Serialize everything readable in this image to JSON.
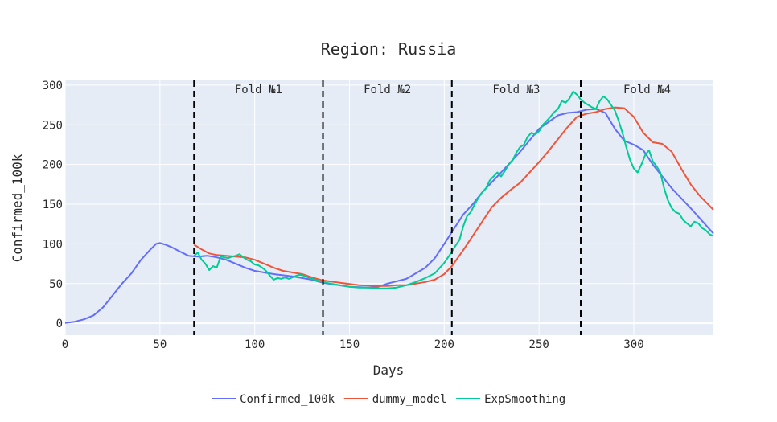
{
  "chart_data": {
    "type": "line",
    "title": "Region: Russia",
    "xlabel": "Days",
    "ylabel": "Confirmed_100k",
    "xlim": [
      0,
      342
    ],
    "ylim": [
      -15,
      306
    ],
    "xticks": [
      0,
      50,
      100,
      150,
      200,
      250,
      300
    ],
    "yticks": [
      0,
      50,
      100,
      150,
      200,
      250,
      300
    ],
    "grid": true,
    "legend_position": "bottom",
    "folds": [
      {
        "label": "Fold №1",
        "start": 68,
        "end": 136
      },
      {
        "label": "Fold №2",
        "start": 136,
        "end": 204
      },
      {
        "label": "Fold №3",
        "start": 204,
        "end": 272
      },
      {
        "label": "Fold №4",
        "start": 272,
        "end": 342
      }
    ],
    "split_lines": [
      68,
      136,
      204,
      272
    ],
    "series": [
      {
        "name": "Confirmed_100k",
        "color": "#636efa",
        "x": [
          0,
          5,
          10,
          15,
          20,
          25,
          30,
          35,
          40,
          45,
          48,
          50,
          53,
          56,
          60,
          65,
          70,
          75,
          80,
          85,
          90,
          95,
          100,
          110,
          120,
          130,
          136,
          150,
          160,
          165,
          170,
          180,
          190,
          195,
          200,
          204,
          210,
          215,
          220,
          230,
          240,
          250,
          260,
          265,
          270,
          275,
          280,
          285,
          290,
          295,
          300,
          305,
          310,
          320,
          330,
          342
        ],
        "values": [
          0.5,
          2,
          5,
          10,
          20,
          35,
          50,
          63,
          80,
          93,
          100,
          101,
          99,
          96,
          91,
          85,
          84,
          85,
          83,
          80,
          75,
          70,
          66,
          62,
          59,
          55,
          51,
          46,
          45,
          46,
          50,
          56,
          70,
          82,
          100,
          115,
          137,
          150,
          165,
          190,
          216,
          245,
          262,
          265,
          266,
          269,
          270,
          265,
          245,
          230,
          225,
          218,
          200,
          170,
          145,
          113
        ]
      },
      {
        "name": "dummy_model",
        "color": "#ef553b",
        "x": [
          68,
          72,
          76,
          80,
          85,
          90,
          95,
          100,
          105,
          110,
          115,
          120,
          125,
          130,
          136,
          145,
          155,
          165,
          170,
          175,
          180,
          185,
          190,
          195,
          200,
          204,
          210,
          215,
          220,
          225,
          230,
          235,
          240,
          245,
          250,
          255,
          260,
          265,
          270,
          275,
          280,
          285,
          290,
          295,
          300,
          305,
          310,
          315,
          320,
          325,
          330,
          335,
          342
        ],
        "values": [
          99,
          93,
          88,
          86,
          85,
          84,
          83,
          80,
          75,
          70,
          66,
          64,
          62,
          58,
          54,
          51,
          48,
          47,
          47,
          48,
          48,
          50,
          52,
          55,
          62,
          72,
          92,
          110,
          128,
          146,
          158,
          168,
          177,
          190,
          203,
          217,
          232,
          247,
          260,
          264,
          266,
          270,
          272,
          271,
          260,
          240,
          228,
          226,
          216,
          195,
          175,
          160,
          143
        ]
      },
      {
        "name": "ExpSmoothing",
        "color": "#00cc96",
        "x": [
          68,
          70,
          72,
          74,
          76,
          78,
          80,
          82,
          84,
          86,
          88,
          90,
          92,
          94,
          96,
          98,
          100,
          102,
          104,
          106,
          108,
          110,
          112,
          114,
          116,
          118,
          120,
          122,
          124,
          126,
          128,
          130,
          132,
          134,
          136,
          140,
          145,
          150,
          155,
          160,
          165,
          170,
          175,
          180,
          185,
          190,
          195,
          200,
          204,
          206,
          208,
          210,
          212,
          214,
          216,
          218,
          220,
          222,
          224,
          226,
          228,
          230,
          232,
          234,
          236,
          238,
          240,
          242,
          244,
          246,
          248,
          250,
          252,
          254,
          256,
          258,
          260,
          262,
          264,
          266,
          268,
          270,
          272,
          274,
          276,
          278,
          280,
          282,
          284,
          286,
          288,
          290,
          292,
          294,
          296,
          298,
          300,
          302,
          304,
          306,
          308,
          310,
          312,
          314,
          316,
          318,
          320,
          322,
          324,
          326,
          328,
          330,
          332,
          334,
          336,
          338,
          340,
          342
        ],
        "values": [
          85,
          89,
          80,
          75,
          67,
          72,
          70,
          84,
          83,
          82,
          84,
          85,
          87,
          83,
          80,
          78,
          74,
          73,
          70,
          66,
          60,
          55,
          57,
          56,
          58,
          56,
          58,
          60,
          61,
          60,
          58,
          56,
          55,
          53,
          52,
          50,
          48,
          46,
          45,
          45,
          44,
          44,
          45,
          48,
          52,
          57,
          63,
          76,
          90,
          98,
          105,
          122,
          135,
          140,
          150,
          158,
          165,
          170,
          180,
          185,
          190,
          185,
          192,
          200,
          205,
          215,
          222,
          225,
          235,
          240,
          238,
          242,
          250,
          255,
          260,
          266,
          270,
          280,
          278,
          283,
          292,
          288,
          282,
          278,
          275,
          272,
          270,
          280,
          286,
          282,
          275,
          268,
          255,
          240,
          222,
          206,
          195,
          190,
          200,
          212,
          218,
          204,
          198,
          190,
          170,
          155,
          145,
          140,
          138,
          130,
          126,
          122,
          128,
          126,
          120,
          117,
          112,
          110
        ]
      }
    ]
  }
}
